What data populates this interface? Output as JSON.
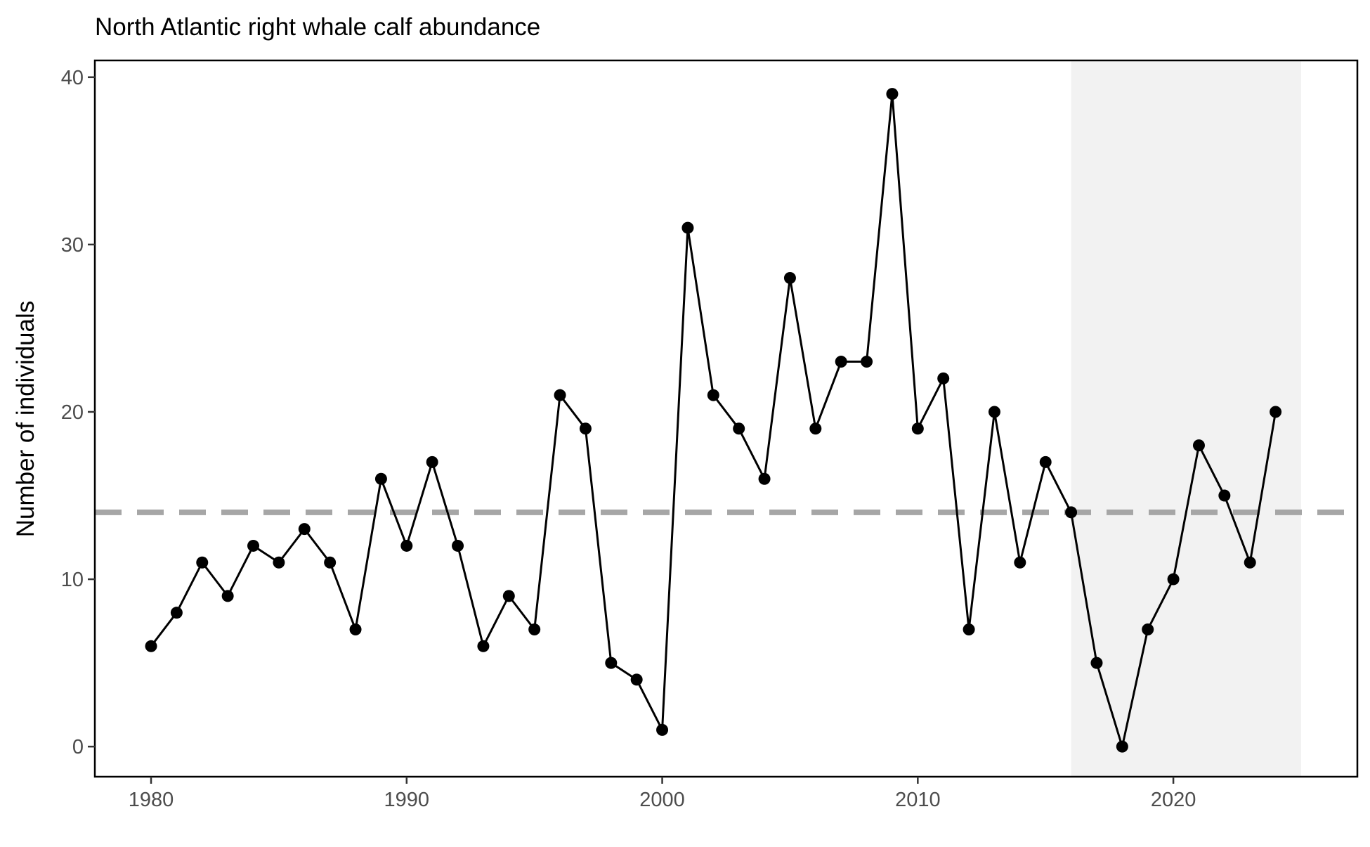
{
  "chart_data": {
    "type": "line",
    "title": "North Atlantic right whale calf abundance",
    "xlabel": "",
    "ylabel": "Number of individuals",
    "xlim": [
      1977.8,
      2027.2
    ],
    "ylim": [
      -1.8,
      41.0
    ],
    "x_ticks": [
      1980,
      1990,
      2000,
      2010,
      2020
    ],
    "y_ticks": [
      0,
      10,
      20,
      30,
      40
    ],
    "grid": false,
    "legend": "none",
    "reference_line": {
      "y": 14,
      "style": "dashed",
      "color": "#a6a6a6"
    },
    "shaded_region": {
      "x_start": 2016,
      "x_end": 2025,
      "color": "#f2f2f2"
    },
    "series": [
      {
        "color": "#000000",
        "x": [
          1980,
          1981,
          1982,
          1983,
          1984,
          1985,
          1986,
          1987,
          1988,
          1989,
          1990,
          1991,
          1992,
          1993,
          1994,
          1995,
          1996,
          1997,
          1998,
          1999,
          2000,
          2001,
          2002,
          2003,
          2004,
          2005,
          2006,
          2007,
          2008,
          2009,
          2010,
          2011,
          2012,
          2013,
          2014,
          2015,
          2016,
          2017,
          2018,
          2019,
          2020,
          2021,
          2022,
          2023,
          2024
        ],
        "values": [
          6,
          8,
          11,
          9,
          12,
          11,
          13,
          11,
          7,
          16,
          12,
          17,
          12,
          6,
          9,
          7,
          21,
          19,
          5,
          4,
          1,
          31,
          21,
          19,
          16,
          28,
          19,
          23,
          23,
          39,
          19,
          22,
          7,
          20,
          11,
          17,
          14,
          5,
          0,
          7,
          10,
          18,
          15,
          11,
          20
        ]
      }
    ]
  }
}
